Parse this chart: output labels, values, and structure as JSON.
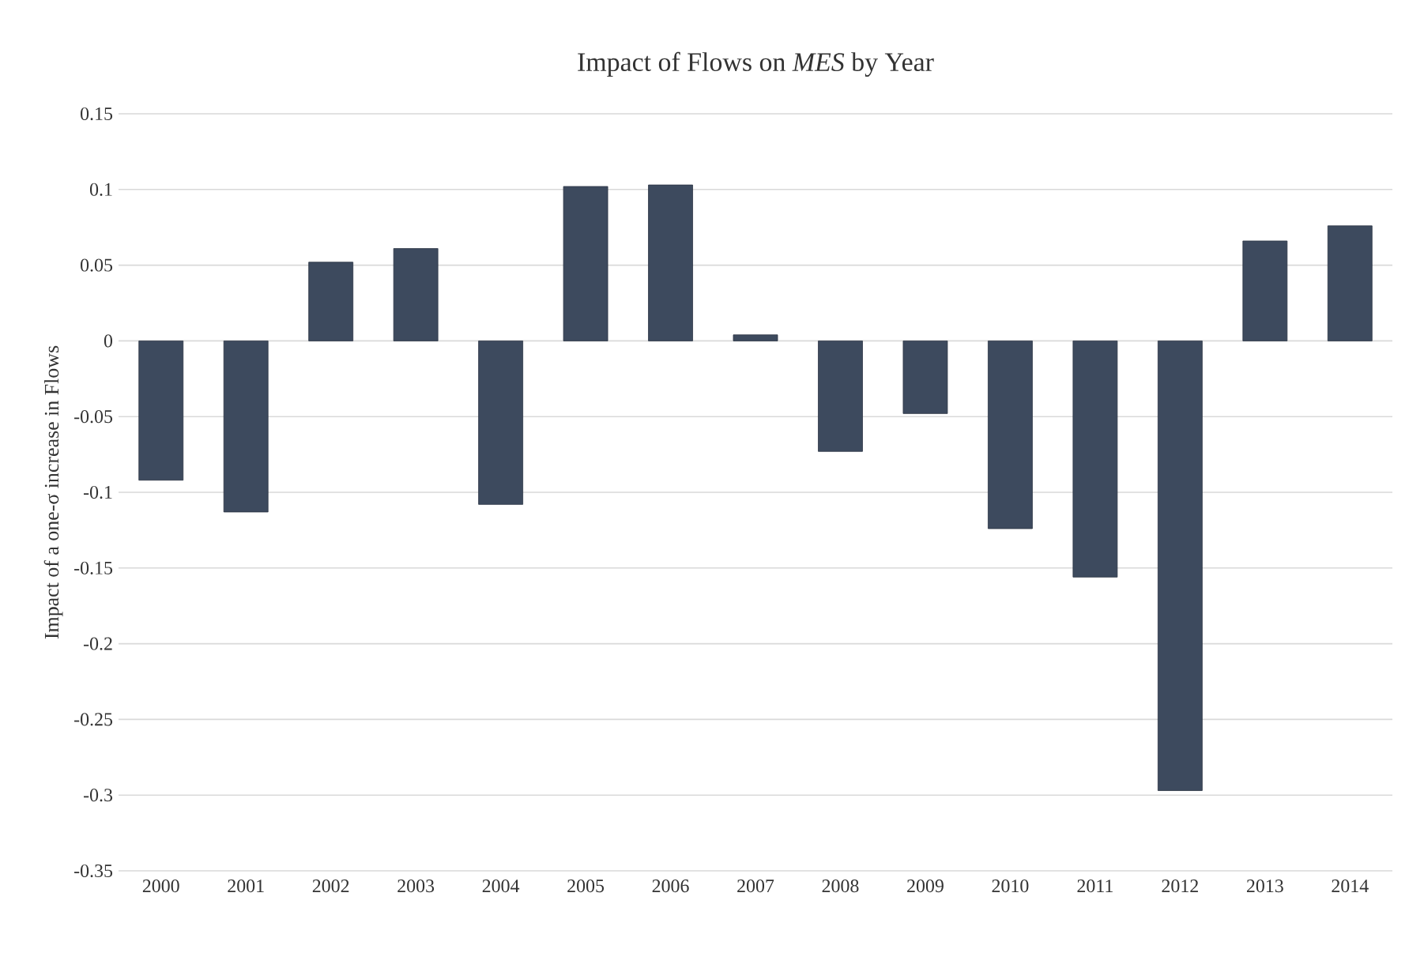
{
  "chart_data": {
    "type": "bar",
    "title": "Impact of Flows on *MES* by Year",
    "ylabel": "Impact of a one-σ increase in Flows",
    "categories": [
      "2000",
      "2001",
      "2002",
      "2003",
      "2004",
      "2005",
      "2006",
      "2007",
      "2008",
      "2009",
      "2010",
      "2011",
      "2012",
      "2013",
      "2014"
    ],
    "values": [
      -0.092,
      -0.113,
      0.052,
      0.061,
      -0.108,
      0.102,
      0.103,
      0.004,
      -0.073,
      -0.048,
      -0.124,
      -0.156,
      -0.297,
      0.066,
      0.076
    ],
    "color": "#3d4a5e",
    "ylim": [
      -0.35,
      0.15
    ],
    "yticks": [
      -0.35,
      -0.3,
      -0.25,
      -0.2,
      -0.15,
      -0.1,
      -0.05,
      0,
      0.05,
      0.1,
      0.15
    ],
    "grid": "y"
  }
}
